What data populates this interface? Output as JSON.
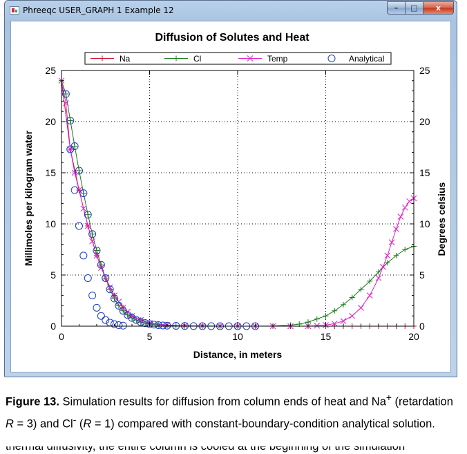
{
  "window": {
    "title": "Phreeqc USER_GRAPH 1 Example 12",
    "minimize_label": "–",
    "maximize_label": "□",
    "close_label": "x"
  },
  "chart_data": {
    "type": "line",
    "title": "Diffusion of Solutes and Heat",
    "xlabel": "Distance, in meters",
    "ylabel": "Millimoles per kilogram water",
    "y2label": "Degrees celsius",
    "xlim": [
      0,
      20
    ],
    "ylim": [
      0,
      25
    ],
    "y2lim": [
      0,
      25
    ],
    "xticks": [
      "0",
      "5",
      "10",
      "15",
      "20"
    ],
    "yticks": [
      "0",
      "5",
      "10",
      "15",
      "20",
      "25"
    ],
    "y2ticks": [
      "0",
      "5",
      "10",
      "15",
      "20",
      "25"
    ],
    "grid": true,
    "legend_position": "top",
    "legend": [
      "Na",
      "Cl",
      "Temp",
      "Analytical"
    ],
    "series": [
      {
        "name": "Na",
        "color": "#c8102e",
        "marker": "plus",
        "x": [
          0,
          0.5,
          1,
          1.5,
          2,
          2.5,
          3,
          3.5,
          4,
          4.5,
          5,
          6,
          7,
          8,
          9,
          10,
          11,
          12,
          13,
          14,
          15,
          15.5,
          16,
          16.5,
          17,
          17.5,
          18,
          18.5,
          19,
          19.5,
          20
        ],
        "y": [
          24,
          17.3,
          13.3,
          9.8,
          6.9,
          4.7,
          3.0,
          1.8,
          1.0,
          0.6,
          0.3,
          0.1,
          0.05,
          0.02,
          0,
          0,
          0,
          0,
          0,
          0,
          0,
          0,
          0,
          0,
          0,
          0,
          0,
          0,
          0,
          0,
          0
        ]
      },
      {
        "name": "Cl",
        "color": "#1a7a1a",
        "marker": "plus",
        "x": [
          0,
          0.25,
          0.5,
          0.75,
          1,
          1.25,
          1.5,
          1.75,
          2,
          2.25,
          2.5,
          2.75,
          3,
          3.25,
          3.5,
          3.75,
          4,
          4.25,
          4.5,
          4.75,
          5,
          5.5,
          6,
          6.5,
          7,
          8,
          9,
          10,
          11,
          12,
          13,
          13.5,
          14,
          14.5,
          15,
          15.5,
          16,
          16.5,
          17,
          17.5,
          18,
          18.5,
          19,
          19.5,
          20
        ],
        "y": [
          24,
          22.7,
          20.1,
          17.6,
          15.2,
          13.0,
          10.9,
          9.0,
          7.4,
          6.0,
          4.7,
          3.6,
          2.7,
          2.0,
          1.5,
          1.1,
          0.8,
          0.6,
          0.4,
          0.3,
          0.2,
          0.12,
          0.06,
          0.03,
          0.02,
          0.01,
          0,
          0,
          0,
          0.02,
          0.1,
          0.2,
          0.4,
          0.7,
          1.0,
          1.5,
          2.1,
          2.8,
          3.6,
          4.4,
          5.3,
          6.2,
          6.9,
          7.5,
          7.8
        ]
      },
      {
        "name": "Temp",
        "color": "#e020c8",
        "marker": "x",
        "x": [
          0,
          0.25,
          0.5,
          0.75,
          1,
          1.25,
          1.5,
          1.75,
          2,
          2.25,
          2.5,
          2.75,
          3,
          3.25,
          3.5,
          3.75,
          4,
          4.5,
          5,
          6,
          7,
          8,
          9,
          10,
          11,
          12,
          13,
          14,
          14.5,
          15,
          15.5,
          16,
          16.5,
          17,
          17.5,
          18,
          18.25,
          18.5,
          18.75,
          19,
          19.25,
          19.5,
          19.75,
          20
        ],
        "y": [
          24,
          21.8,
          17.3,
          15.0,
          13.3,
          11.5,
          9.8,
          8.3,
          6.9,
          5.7,
          4.7,
          3.8,
          3.0,
          2.4,
          1.8,
          1.4,
          1.0,
          0.6,
          0.3,
          0.1,
          0.05,
          0.02,
          0,
          0,
          0,
          0,
          0,
          0,
          0.05,
          0.1,
          0.25,
          0.5,
          1.0,
          1.8,
          3.0,
          4.7,
          5.8,
          6.9,
          8.2,
          9.5,
          10.7,
          11.6,
          12.2,
          12.5
        ]
      },
      {
        "name": "Analytical",
        "color": "#1a3cc8",
        "marker": "circle",
        "x": [
          0.25,
          0.5,
          0.75,
          1,
          1.25,
          1.5,
          1.75,
          2,
          2.25,
          2.5,
          2.75,
          3,
          3.25,
          3.5,
          3.75,
          4,
          4.25,
          4.5,
          4.75,
          5,
          5.25,
          5.5,
          5.75,
          6,
          6.5,
          7,
          7.5,
          8,
          8.5,
          9,
          9.5,
          10,
          10.5,
          11,
          0.5,
          0.75,
          1,
          1.25,
          1.5,
          1.75,
          2,
          2.25,
          2.5,
          2.75,
          3,
          3.25,
          3.5
        ],
        "y": [
          22.7,
          20.1,
          17.6,
          15.2,
          13.0,
          10.9,
          9.0,
          7.4,
          6.0,
          4.7,
          3.6,
          2.7,
          2.0,
          1.5,
          1.1,
          0.8,
          0.6,
          0.4,
          0.3,
          0.2,
          0.15,
          0.1,
          0.07,
          0.05,
          0.03,
          0.02,
          0.01,
          0,
          0,
          0,
          0,
          0,
          0,
          0,
          17.3,
          13.3,
          9.8,
          6.9,
          4.7,
          3.0,
          1.8,
          1.0,
          0.6,
          0.35,
          0.2,
          0.1,
          0.05
        ]
      }
    ]
  },
  "caption": {
    "label": "Figure 13.",
    "part1": " Simulation results for diffusion from column ends of heat and Na",
    "na_sup": "+",
    "part2": " (retardation ",
    "r_var": "R",
    "part3": " = 3) and Cl",
    "cl_sup": "-",
    "part4": " (",
    "r_var2": "R",
    "part5": " = 1) compared with constant-boundary-condition analytical solution."
  },
  "cut_text": "thermal diffusivity, the entire column is cooled at the beginning of the simulation"
}
